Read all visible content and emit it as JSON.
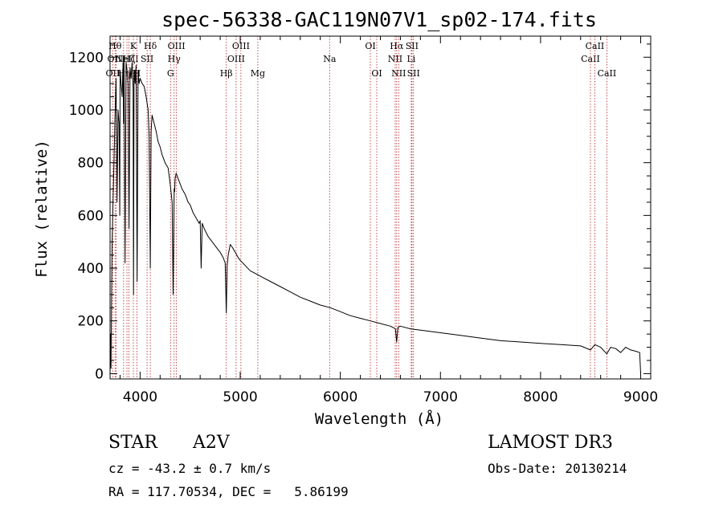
{
  "chart_data": {
    "type": "line",
    "title": "spec-56338-GAC119N07V1_sp02-174.fits",
    "xlabel": "Wavelength (Å)",
    "ylabel": "Flux (relative)",
    "xlim": [
      3700,
      9100
    ],
    "ylim": [
      -20,
      1280
    ],
    "xticks": [
      4000,
      5000,
      6000,
      7000,
      8000,
      9000
    ],
    "yticks": [
      0,
      200,
      400,
      600,
      800,
      1000,
      1200
    ],
    "grid": false,
    "series": [
      {
        "name": "spectrum",
        "x": [
          3700,
          3705,
          3710,
          3715,
          3720,
          3730,
          3740,
          3750,
          3760,
          3770,
          3780,
          3790,
          3797,
          3800,
          3810,
          3820,
          3830,
          3835,
          3840,
          3850,
          3860,
          3870,
          3880,
          3889,
          3900,
          3910,
          3920,
          3930,
          3934,
          3940,
          3950,
          3960,
          3970,
          3980,
          3990,
          4000,
          4020,
          4040,
          4060,
          4080,
          4090,
          4102,
          4110,
          4120,
          4140,
          4160,
          4180,
          4200,
          4220,
          4250,
          4280,
          4300,
          4320,
          4330,
          4340,
          4345,
          4350,
          4360,
          4380,
          4400,
          4420,
          4450,
          4480,
          4500,
          4530,
          4560,
          4590,
          4600,
          4610,
          4620,
          4640,
          4680,
          4720,
          4760,
          4800,
          4830,
          4850,
          4861,
          4870,
          4880,
          4900,
          4920,
          4950,
          4980,
          5000,
          5050,
          5100,
          5150,
          5200,
          5300,
          5400,
          5500,
          5600,
          5700,
          5800,
          5900,
          6000,
          6100,
          6200,
          6300,
          6400,
          6500,
          6550,
          6563,
          6575,
          6600,
          6700,
          6800,
          6900,
          7000,
          7200,
          7400,
          7600,
          7800,
          8000,
          8200,
          8400,
          8498,
          8542,
          8600,
          8662,
          8700,
          8750,
          8800,
          8850,
          8900,
          8950,
          8990,
          9000
        ],
        "values": [
          0,
          150,
          20,
          300,
          480,
          650,
          820,
          980,
          1120,
          650,
          1000,
          950,
          600,
          1150,
          1100,
          1050,
          1180,
          950,
          1200,
          420,
          1180,
          1150,
          1100,
          550,
          1160,
          1120,
          1180,
          1080,
          300,
          1150,
          1100,
          1170,
          350,
          1150,
          1100,
          1120,
          1100,
          1090,
          1050,
          1000,
          900,
          400,
          920,
          980,
          950,
          920,
          880,
          860,
          830,
          800,
          780,
          720,
          650,
          300,
          700,
          690,
          740,
          760,
          740,
          720,
          700,
          680,
          650,
          640,
          610,
          590,
          570,
          580,
          400,
          570,
          550,
          520,
          500,
          480,
          460,
          440,
          420,
          230,
          410,
          450,
          490,
          480,
          460,
          440,
          430,
          410,
          390,
          380,
          370,
          350,
          330,
          310,
          290,
          275,
          260,
          250,
          235,
          220,
          210,
          200,
          190,
          180,
          170,
          120,
          175,
          180,
          170,
          165,
          160,
          155,
          145,
          135,
          125,
          120,
          115,
          110,
          105,
          90,
          110,
          100,
          75,
          100,
          95,
          80,
          100,
          90,
          85,
          80,
          0
        ]
      }
    ],
    "line_markers": [
      {
        "wavelength": 3727,
        "label": "OII",
        "row": 3
      },
      {
        "wavelength": 3750,
        "label": "Hθ",
        "row": 1
      },
      {
        "wavelength": 3760,
        "label": "OIII",
        "row": 2
      },
      {
        "wavelength": 3835,
        "label": "Hη",
        "row": 3
      },
      {
        "wavelength": 3869,
        "label": "NeIII",
        "row": 2
      },
      {
        "wavelength": 3889,
        "label": "Hζ",
        "row": 2
      },
      {
        "wavelength": 3933,
        "label": "K",
        "row": 1
      },
      {
        "wavelength": 3968,
        "label": "H",
        "row": 3
      },
      {
        "wavelength": 4070,
        "label": "SII",
        "row": 2
      },
      {
        "wavelength": 4102,
        "label": "Hδ",
        "row": 1
      },
      {
        "wavelength": 4304,
        "label": "G",
        "row": 3
      },
      {
        "wavelength": 4340,
        "label": "Hγ",
        "row": 2
      },
      {
        "wavelength": 4363,
        "label": "OIII",
        "row": 1
      },
      {
        "wavelength": 4861,
        "label": "Hβ",
        "row": 3
      },
      {
        "wavelength": 4959,
        "label": "OIII",
        "row": 2
      },
      {
        "wavelength": 5007,
        "label": "OIII",
        "row": 1
      },
      {
        "wavelength": 5176,
        "label": "Mg",
        "row": 3
      },
      {
        "wavelength": 5893,
        "label": "Na",
        "row": 2
      },
      {
        "wavelength": 6300,
        "label": "OI",
        "row": 1
      },
      {
        "wavelength": 6364,
        "label": "OI",
        "row": 3
      },
      {
        "wavelength": 6548,
        "label": "NII",
        "row": 2
      },
      {
        "wavelength": 6563,
        "label": "Hα",
        "row": 1
      },
      {
        "wavelength": 6583,
        "label": "NII",
        "row": 3
      },
      {
        "wavelength": 6708,
        "label": "Li",
        "row": 2
      },
      {
        "wavelength": 6716,
        "label": "SII",
        "row": 1
      },
      {
        "wavelength": 6731,
        "label": "SII",
        "row": 3
      },
      {
        "wavelength": 8498,
        "label": "CaII",
        "row": 2
      },
      {
        "wavelength": 8542,
        "label": "CaII",
        "row": 1
      },
      {
        "wavelength": 8662,
        "label": "CaII",
        "row": 3
      }
    ]
  },
  "info": {
    "object_class": "STAR",
    "subclass": "A2V",
    "survey": "LAMOST DR3",
    "cz": "cz = -43.2 ± 0.7 km/s",
    "obs_date": "Obs-Date: 20130214",
    "coords": "RA = 117.70534, DEC =   5.86199"
  },
  "colors": {
    "spectrum": "#000000",
    "marker": "#b22222",
    "axes": "#000000",
    "background": "#ffffff"
  }
}
